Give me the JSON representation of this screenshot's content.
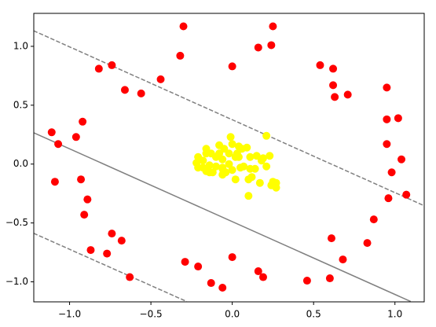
{
  "chart_data": {
    "type": "scatter",
    "xlim": [
      -1.22,
      1.18
    ],
    "ylim": [
      -1.17,
      1.28
    ],
    "xticks": [
      {
        "value": -1.0,
        "label": "−1.0"
      },
      {
        "value": -0.5,
        "label": "−0.5"
      },
      {
        "value": 0.0,
        "label": "0.0"
      },
      {
        "value": 0.5,
        "label": "0.5"
      },
      {
        "value": 1.0,
        "label": "1.0"
      }
    ],
    "yticks": [
      {
        "value": -1.0,
        "label": "−1.0"
      },
      {
        "value": -0.5,
        "label": "−0.5"
      },
      {
        "value": 0.0,
        "label": "0.0"
      },
      {
        "value": 0.5,
        "label": "0.5"
      },
      {
        "value": 1.0,
        "label": "1.0"
      }
    ],
    "lines": [
      {
        "color": "#808080",
        "style": "solid",
        "x": [
          -1.222,
          1.097
        ],
        "y": [
          0.267,
          -1.167
        ]
      },
      {
        "color": "#808080",
        "style": "dashed",
        "x": [
          -1.222,
          1.179
        ],
        "y": [
          1.133,
          -0.353
        ]
      },
      {
        "color": "#808080",
        "style": "dashed",
        "x": [
          -1.222,
          -0.28
        ],
        "y": [
          -0.587,
          -1.167
        ]
      }
    ],
    "series": [
      {
        "color": "#ff0000",
        "x": [
          -0.3,
          0.25,
          0.16,
          0.24,
          -0.32,
          0.0,
          -0.74,
          -0.82,
          -0.44,
          -0.66,
          -0.56,
          0.54,
          0.62,
          0.62,
          0.63,
          0.71,
          0.95,
          0.95,
          1.02,
          0.95,
          1.04,
          0.98,
          1.07,
          0.96,
          0.87,
          0.83,
          0.61,
          0.68,
          0.6,
          0.46,
          0.16,
          0.19,
          0.0,
          -0.06,
          -0.13,
          -0.21,
          -0.29,
          -0.63,
          -0.68,
          -0.74,
          -0.77,
          -0.87,
          -0.91,
          -0.89,
          -0.93,
          -1.09,
          -0.92,
          -0.96,
          -1.11,
          -1.07
        ],
        "y": [
          1.17,
          1.17,
          0.99,
          1.01,
          0.92,
          0.83,
          0.84,
          0.81,
          0.72,
          0.63,
          0.6,
          0.84,
          0.81,
          0.67,
          0.57,
          0.59,
          0.65,
          0.38,
          0.39,
          0.17,
          0.04,
          -0.07,
          -0.26,
          -0.29,
          -0.47,
          -0.67,
          -0.63,
          -0.81,
          -0.97,
          -0.99,
          -0.91,
          -0.96,
          -0.79,
          -1.05,
          -1.01,
          -0.87,
          -0.83,
          -0.96,
          -0.65,
          -0.59,
          -0.76,
          -0.73,
          -0.43,
          -0.3,
          -0.13,
          -0.15,
          0.36,
          0.23,
          0.27,
          0.17
        ]
      },
      {
        "color": "#ffff00",
        "x": [
          -0.01,
          0.21,
          -0.21,
          -0.22,
          -0.16,
          -0.13,
          -0.08,
          -0.05,
          -0.02,
          -0.06,
          -0.1,
          -0.14,
          -0.18,
          -0.21,
          -0.16,
          -0.12,
          -0.06,
          -0.04,
          0.0,
          0.03,
          0.06,
          0.09,
          0.04,
          0.11,
          0.15,
          0.18,
          0.21,
          0.23,
          0.05,
          0.07,
          0.02,
          0.1,
          0.12,
          0.17,
          0.25,
          0.27,
          0.24,
          0.27,
          0.1,
          0.0,
          0.02,
          -0.06,
          -0.14,
          -0.18,
          -0.16,
          -0.1,
          -0.06,
          0.14,
          0.19,
          0.11,
          -0.02,
          -0.08,
          0.04
        ],
        "y": [
          0.23,
          0.24,
          0.06,
          0.01,
          0.13,
          0.09,
          0.16,
          0.13,
          0.09,
          0.04,
          0.06,
          -0.01,
          -0.03,
          -0.03,
          -0.06,
          -0.07,
          -0.03,
          -0.07,
          -0.05,
          0.09,
          0.13,
          0.14,
          0.06,
          0.06,
          0.07,
          0.03,
          -0.02,
          0.07,
          -0.03,
          -0.02,
          -0.13,
          -0.13,
          -0.11,
          -0.16,
          -0.15,
          -0.16,
          -0.18,
          -0.2,
          -0.27,
          0.17,
          0.06,
          -0.04,
          -0.07,
          0.03,
          0.09,
          -0.02,
          -0.09,
          -0.04,
          0.05,
          -0.04,
          0.0,
          0.09,
          0.15
        ]
      }
    ]
  }
}
